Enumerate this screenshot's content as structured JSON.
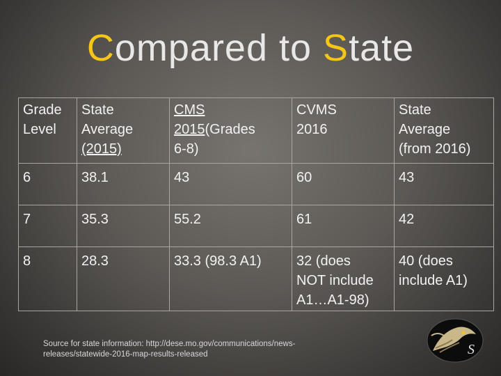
{
  "title": {
    "first_cap": "C",
    "first_rest": "ompared to ",
    "second_cap": "S",
    "second_rest": "tate"
  },
  "table": {
    "headers": {
      "grade_l1": "Grade",
      "grade_l2": "Level",
      "state_l1": "State",
      "state_l2": "Average",
      "state_l3": "(2015)",
      "cms_l1": "CMS ",
      "cms_l2a": "2015",
      "cms_l2b": "(Grades",
      "cms_l3": "6-8)",
      "cvms_l1": "CVMS",
      "cvms_l2": "2016",
      "state16_l1": "State",
      "state16_l2": "Average",
      "state16_l3": "(from 2016)"
    },
    "rows": [
      {
        "grade": "6",
        "state2015": "38.1",
        "cms2015": "43",
        "cvms2016": "60",
        "state2016": "43"
      },
      {
        "grade": "7",
        "state2015": "35.3",
        "cms2015": "55.2",
        "cvms2016": "61",
        "state2016": "42"
      },
      {
        "grade": "8",
        "state2015": "28.3",
        "cms2015": "33.3 (98.3 A1)",
        "cvms2016_l1": "32 (does",
        "cvms2016_l2": "NOT include",
        "cvms2016_l3": "A1…A1-98)",
        "state2016_l1": "40 (does",
        "state2016_l2": "include A1)"
      }
    ]
  },
  "source": {
    "line1": "Source for state information:  http://dese.mo.gov/communications/news-",
    "line2": "releases/statewide-2016-map-results-released"
  },
  "logo": {
    "icon": "mascot-logo-icon",
    "letter": "S"
  },
  "colors": {
    "accent": "#f5c518",
    "text": "#f2f2f2",
    "border": "#a9a6a1"
  }
}
